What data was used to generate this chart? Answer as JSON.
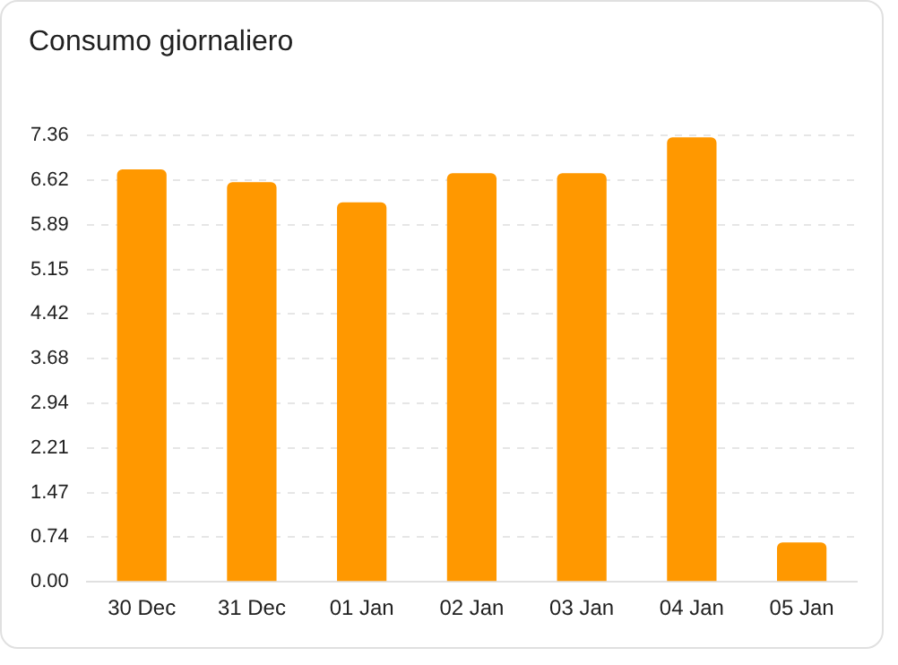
{
  "chart_data": {
    "type": "bar",
    "title": "Consumo giornaliero",
    "categories": [
      "30 Dec",
      "31 Dec",
      "01 Jan",
      "02 Jan",
      "03 Jan",
      "04 Jan",
      "05 Jan"
    ],
    "values": [
      6.8,
      6.59,
      6.26,
      6.74,
      6.74,
      7.33,
      0.65
    ],
    "color": "#ff9800",
    "ylim": [
      0,
      7.36
    ],
    "yticks": [
      {
        "value": 0,
        "label": "0.00"
      },
      0.74,
      1.47,
      2.21,
      2.94,
      3.68,
      4.42,
      5.15,
      5.89,
      6.62,
      7.36
    ],
    "grid": "y",
    "legend": false
  }
}
